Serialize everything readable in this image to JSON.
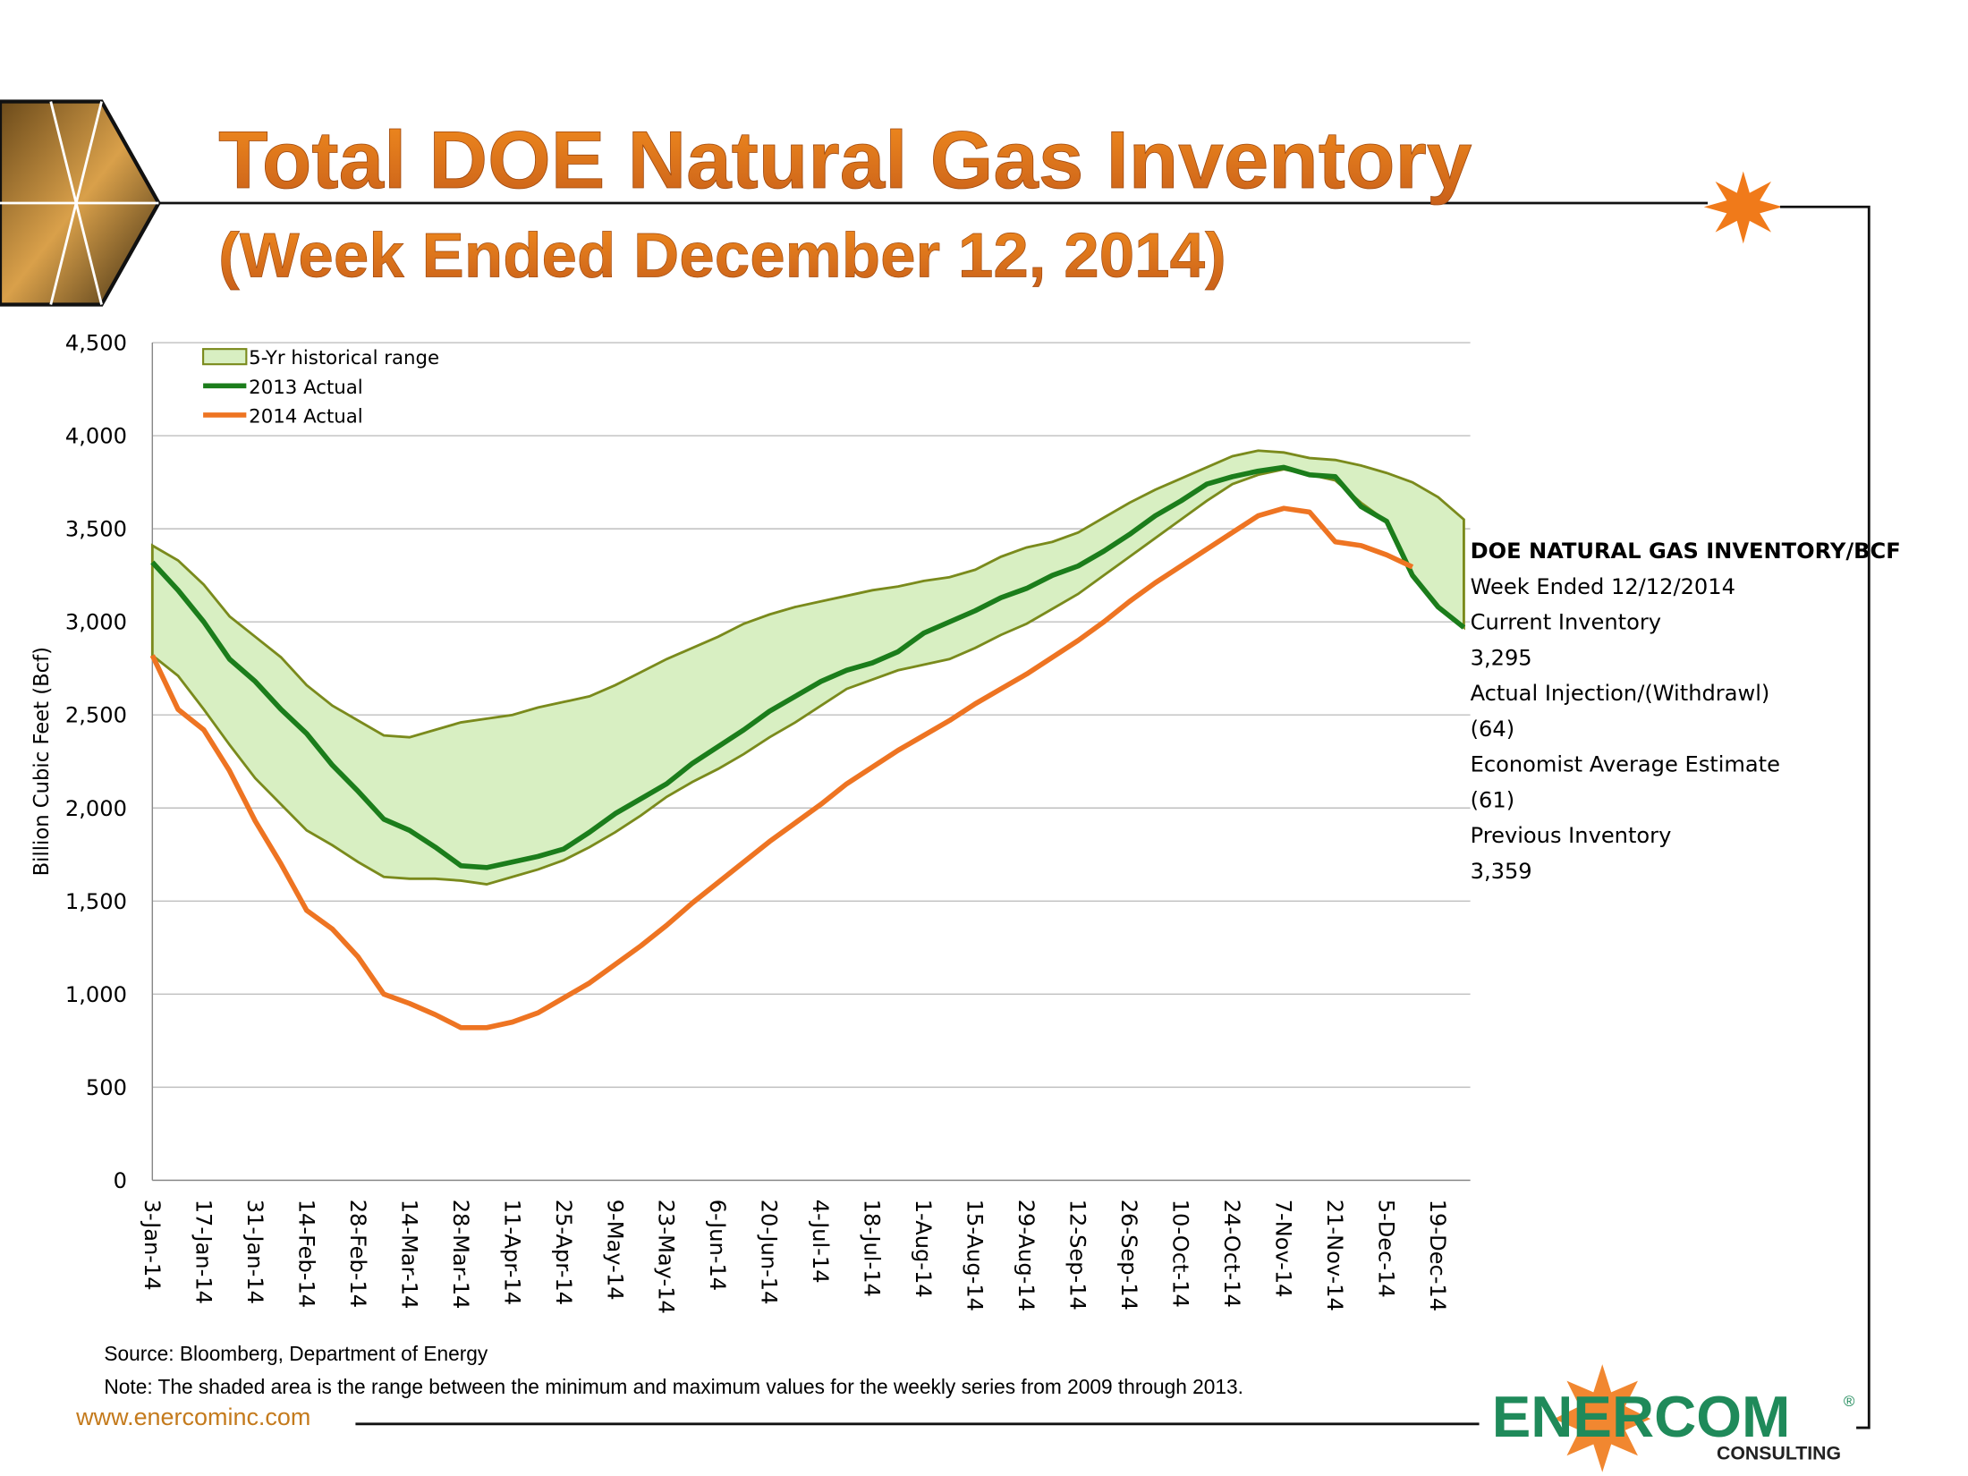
{
  "header": {
    "title": "Total DOE Natural Gas Inventory",
    "subtitle": "(Week Ended December 12, 2014)"
  },
  "chart_data": {
    "type": "line",
    "y_label": "Billion Cubic Feet (Bcf)",
    "categories": [
      "3-Jan-14",
      null,
      "17-Jan-14",
      null,
      "31-Jan-14",
      null,
      "14-Feb-14",
      null,
      "28-Feb-14",
      null,
      "14-Mar-14",
      null,
      "28-Mar-14",
      null,
      "11-Apr-14",
      null,
      "25-Apr-14",
      null,
      "9-May-14",
      null,
      "23-May-14",
      null,
      "6-Jun-14",
      null,
      "20-Jun-14",
      null,
      "4-Jul-14",
      null,
      "18-Jul-14",
      null,
      "1-Aug-14",
      null,
      "15-Aug-14",
      null,
      "29-Aug-14",
      null,
      "12-Sep-14",
      null,
      "26-Sep-14",
      null,
      "10-Oct-14",
      null,
      "24-Oct-14",
      null,
      "7-Nov-14",
      null,
      "21-Nov-14",
      null,
      "5-Dec-14",
      null,
      "19-Dec-14",
      null
    ],
    "ylim": [
      0,
      4500
    ],
    "yticks": [
      0,
      500,
      {
        "value": 1000,
        "label": "1,000"
      },
      {
        "value": 1500,
        "label": "1,500"
      },
      {
        "value": 2000,
        "label": "2,000"
      },
      {
        "value": 2500,
        "label": "2,500"
      },
      {
        "value": 3000,
        "label": "3,000"
      },
      {
        "value": 3500,
        "label": "3,500"
      },
      {
        "value": 4000,
        "label": "4,000"
      },
      {
        "value": 4500,
        "label": "4,500"
      }
    ],
    "grid": true,
    "legend": "top-left",
    "range": {
      "name": "5-Yr historical range",
      "color": "#d8efc2",
      "edge_color": "#7a8a1c",
      "max": [
        3410,
        3330,
        3200,
        3030,
        2920,
        2810,
        2660,
        2550,
        2470,
        2390,
        2380,
        2420,
        2460,
        2480,
        2500,
        2540,
        2570,
        2600,
        2660,
        2730,
        2800,
        2860,
        2920,
        2990,
        3040,
        3080,
        3110,
        3140,
        3170,
        3190,
        3220,
        3240,
        3280,
        3350,
        3400,
        3430,
        3480,
        3560,
        3640,
        3710,
        3770,
        3830,
        3890,
        3920,
        3910,
        3880,
        3870,
        3840,
        3800,
        3750,
        3670,
        3550
      ],
      "min": [
        2820,
        2710,
        2530,
        2340,
        2160,
        2020,
        1880,
        1800,
        1710,
        1630,
        1620,
        1620,
        1610,
        1590,
        1630,
        1670,
        1720,
        1790,
        1870,
        1960,
        2060,
        2140,
        2210,
        2290,
        2380,
        2460,
        2550,
        2640,
        2690,
        2740,
        2770,
        2800,
        2860,
        2930,
        2990,
        3070,
        3150,
        3250,
        3350,
        3450,
        3550,
        3650,
        3740,
        3790,
        3820,
        3790,
        3760,
        3640,
        3540,
        3250,
        3080,
        2970
      ]
    },
    "series": [
      {
        "name": "2013 Actual",
        "color": "#1b7d1b",
        "values": [
          3320,
          3170,
          3000,
          2800,
          2680,
          2530,
          2400,
          2230,
          2090,
          1940,
          1880,
          1790,
          1690,
          1680,
          1710,
          1740,
          1780,
          1870,
          1970,
          2050,
          2130,
          2240,
          2330,
          2420,
          2520,
          2600,
          2680,
          2740,
          2780,
          2840,
          2940,
          3000,
          3060,
          3130,
          3180,
          3250,
          3300,
          3380,
          3470,
          3570,
          3650,
          3740,
          3780,
          3810,
          3830,
          3790,
          3780,
          3620,
          3540,
          3250,
          3080,
          2970
        ]
      },
      {
        "name": "2014 Actual",
        "color": "#ee7422",
        "values": [
          2820,
          2530,
          2420,
          2200,
          1930,
          1700,
          1450,
          1350,
          1200,
          1000,
          950,
          890,
          820,
          820,
          850,
          900,
          980,
          1060,
          1160,
          1260,
          1370,
          1490,
          1600,
          1710,
          1820,
          1920,
          2020,
          2130,
          2220,
          2310,
          2390,
          2470,
          2560,
          2640,
          2720,
          2810,
          2900,
          3000,
          3110,
          3210,
          3300,
          3390,
          3480,
          3570,
          3610,
          3590,
          3430,
          3410,
          3360,
          3295,
          null,
          null
        ]
      }
    ]
  },
  "side_panel": {
    "title": "DOE NATURAL GAS INVENTORY/BCF",
    "lines": [
      "Week Ended 12/12/2014",
      "Current Inventory",
      "3,295",
      "Actual Injection/(Withdrawl)",
      "(64)",
      "Economist Average Estimate",
      "(61)",
      "Previous Inventory",
      "3,359"
    ]
  },
  "footer": {
    "source": "Source: Bloomberg, Department of Energy",
    "note": "Note: The shaded area is the range between the minimum and maximum values for the weekly series from 2009 through 2013.",
    "website": "www.enercominc.com",
    "logo": "ENERCOM",
    "logo_sub": "CONSULTING",
    "logo_mark": "®"
  }
}
